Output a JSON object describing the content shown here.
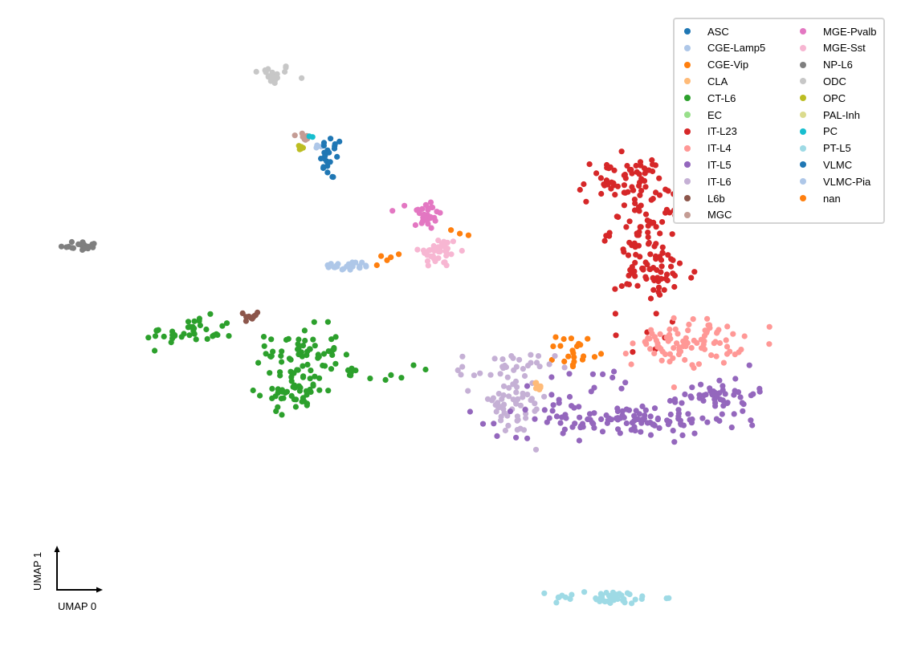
{
  "chart_data": {
    "type": "scatter",
    "title": "",
    "xlabel": "UMAP 0",
    "ylabel": "UMAP 1",
    "xlim": [
      0,
      100
    ],
    "ylim": [
      0,
      100
    ],
    "grid": false,
    "legend_position": "top-right",
    "legend_columns": 2,
    "categories": [
      {
        "name": "ASC",
        "color": "#1f77b4"
      },
      {
        "name": "CGE-Lamp5",
        "color": "#aec7e8"
      },
      {
        "name": "CGE-Vip",
        "color": "#ff7f0e"
      },
      {
        "name": "CLA",
        "color": "#ffbb78"
      },
      {
        "name": "CT-L6",
        "color": "#2ca02c"
      },
      {
        "name": "EC",
        "color": "#98df8a"
      },
      {
        "name": "IT-L23",
        "color": "#d62728"
      },
      {
        "name": "IT-L4",
        "color": "#ff9896"
      },
      {
        "name": "IT-L5",
        "color": "#9467bd"
      },
      {
        "name": "IT-L6",
        "color": "#c5b0d5"
      },
      {
        "name": "L6b",
        "color": "#8c564b"
      },
      {
        "name": "MGC",
        "color": "#c49c94"
      },
      {
        "name": "MGE-Pvalb",
        "color": "#e377c2"
      },
      {
        "name": "MGE-Sst",
        "color": "#f7b6d2"
      },
      {
        "name": "NP-L6",
        "color": "#7f7f7f"
      },
      {
        "name": "ODC",
        "color": "#c7c7c7"
      },
      {
        "name": "OPC",
        "color": "#bcbd22"
      },
      {
        "name": "PAL-Inh",
        "color": "#dbdb8d"
      },
      {
        "name": "PC",
        "color": "#17becf"
      },
      {
        "name": "PT-L5",
        "color": "#9edae5"
      },
      {
        "name": "VLMC",
        "color": "#1f77b4"
      },
      {
        "name": "VLMC-Pia",
        "color": "#aec7e8"
      },
      {
        "name": "nan",
        "color": "#ff7f0e"
      }
    ],
    "clusters": [
      {
        "label": "ODC",
        "cx": 30.0,
        "cy": 88.5,
        "sx": 1.2,
        "sy": 0.8,
        "n": 18
      },
      {
        "label": "MGC",
        "cx": 33.5,
        "cy": 78.8,
        "sx": 0.5,
        "sy": 0.6,
        "n": 7
      },
      {
        "label": "OPC",
        "cx": 33.3,
        "cy": 77.0,
        "sx": 0.5,
        "sy": 0.3,
        "n": 5
      },
      {
        "label": "PC",
        "cx": 34.2,
        "cy": 78.5,
        "sx": 0.3,
        "sy": 0.3,
        "n": 2
      },
      {
        "label": "VLMC-Pia",
        "cx": 35.4,
        "cy": 77.5,
        "sx": 0.5,
        "sy": 0.3,
        "n": 3
      },
      {
        "label": "VLMC",
        "cx": 36.6,
        "cy": 75.5,
        "sx": 0.6,
        "sy": 1.8,
        "n": 24
      },
      {
        "label": "NP-L6",
        "cx": 8.8,
        "cy": 62.0,
        "sx": 1.1,
        "sy": 0.4,
        "n": 20
      },
      {
        "label": "MGE-Pvalb",
        "cx": 47.0,
        "cy": 66.8,
        "sx": 0.9,
        "sy": 1.2,
        "n": 32
      },
      {
        "label": "MGE-Sst",
        "cx": 48.5,
        "cy": 61.0,
        "sx": 1.1,
        "sy": 1.2,
        "n": 40
      },
      {
        "label": "CGE-Lamp5",
        "cx": 38.5,
        "cy": 58.8,
        "sx": 1.4,
        "sy": 0.4,
        "n": 24
      },
      {
        "label": "CGE-Vip",
        "cx": 43.5,
        "cy": 60.2,
        "sx": 1.2,
        "sy": 0.3,
        "n": 5
      },
      {
        "label": "CGE-Vip",
        "cx": 50.5,
        "cy": 64.0,
        "sx": 0.9,
        "sy": 0.3,
        "n": 3
      },
      {
        "label": "L6b",
        "cx": 27.8,
        "cy": 51.0,
        "sx": 0.4,
        "sy": 0.5,
        "n": 10
      },
      {
        "label": "CT-L6",
        "cx": 21.0,
        "cy": 48.5,
        "sx": 2.5,
        "sy": 1.2,
        "n": 38
      },
      {
        "label": "CT-L6",
        "cx": 33.5,
        "cy": 45.5,
        "sx": 2.0,
        "sy": 2.0,
        "n": 55
      },
      {
        "label": "CT-L6",
        "cx": 32.5,
        "cy": 39.5,
        "sx": 1.8,
        "sy": 1.6,
        "n": 50
      },
      {
        "label": "CT-L6",
        "cx": 39.5,
        "cy": 42.3,
        "sx": 3.2,
        "sy": 0.6,
        "n": 16
      },
      {
        "label": "IT-L23",
        "cx": 69.0,
        "cy": 72.0,
        "sx": 2.6,
        "sy": 1.8,
        "n": 62
      },
      {
        "label": "IT-L23",
        "cx": 71.5,
        "cy": 64.5,
        "sx": 2.0,
        "sy": 2.5,
        "n": 60
      },
      {
        "label": "IT-L23",
        "cx": 72.5,
        "cy": 57.5,
        "sx": 2.2,
        "sy": 2.2,
        "n": 55
      },
      {
        "label": "IT-L23",
        "cx": 72.0,
        "cy": 48.5,
        "sx": 2.2,
        "sy": 1.8,
        "n": 8
      },
      {
        "label": "IT-L4",
        "cx": 76.0,
        "cy": 47.0,
        "sx": 3.0,
        "sy": 1.8,
        "n": 90
      },
      {
        "label": "CGE-Vip",
        "cx": 63.5,
        "cy": 45.5,
        "sx": 1.0,
        "sy": 1.4,
        "n": 22
      },
      {
        "label": "IT-L6",
        "cx": 56.0,
        "cy": 43.0,
        "sx": 2.6,
        "sy": 1.2,
        "n": 32
      },
      {
        "label": "IT-L6",
        "cx": 56.5,
        "cy": 37.0,
        "sx": 2.0,
        "sy": 2.2,
        "n": 52
      },
      {
        "label": "CLA",
        "cx": 59.5,
        "cy": 40.0,
        "sx": 0.5,
        "sy": 0.4,
        "n": 8
      },
      {
        "label": "IT-L5",
        "cx": 68.5,
        "cy": 35.0,
        "sx": 6.5,
        "sy": 1.3,
        "n": 120
      },
      {
        "label": "IT-L5",
        "cx": 79.5,
        "cy": 39.0,
        "sx": 2.0,
        "sy": 1.3,
        "n": 45
      },
      {
        "label": "IT-L5",
        "cx": 66.0,
        "cy": 40.5,
        "sx": 4.0,
        "sy": 1.5,
        "n": 14
      },
      {
        "label": "PT-L5",
        "cx": 67.0,
        "cy": 7.5,
        "sx": 3.0,
        "sy": 0.5,
        "n": 45
      }
    ]
  },
  "axis_indicator": {
    "x_label": "UMAP 0",
    "y_label": "UMAP 1"
  }
}
